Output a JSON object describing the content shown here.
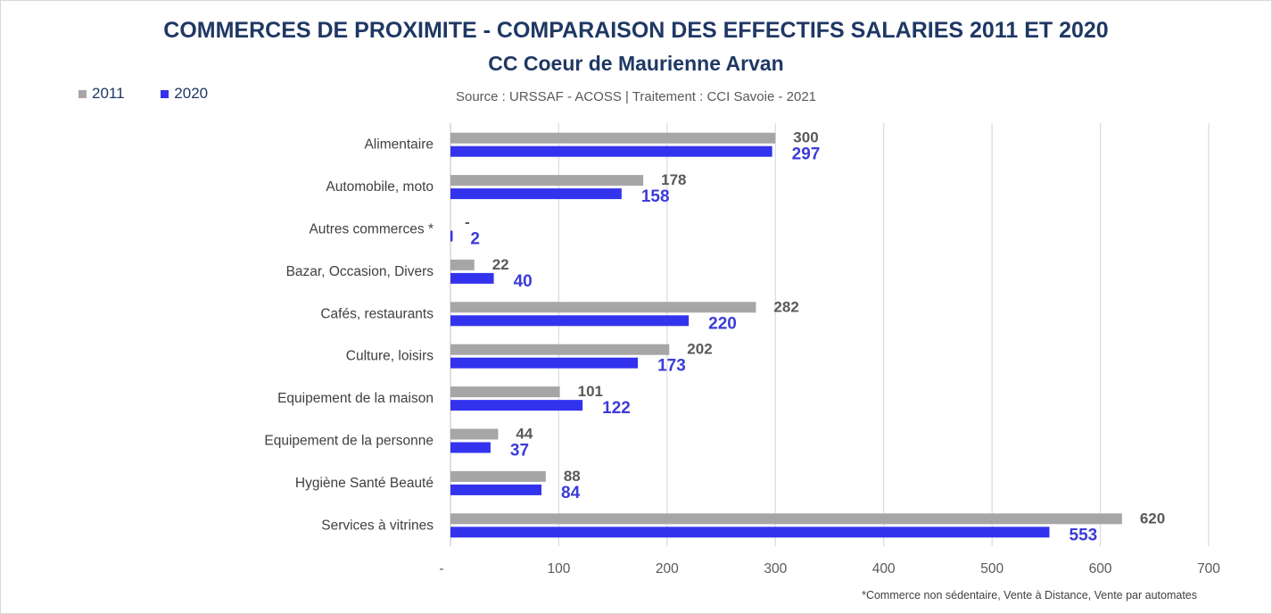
{
  "chart_data": {
    "type": "bar",
    "orientation": "horizontal",
    "title": "COMMERCES DE PROXIMITE - COMPARAISON DES EFFECTIFS SALARIES 2011 ET 2020",
    "subtitle": "CC Coeur de Maurienne Arvan",
    "source": "Source  : URSSAF - ACOSS  |  Traitement : CCI Savoie - 2021",
    "footnote": "*Commerce non sédentaire, Vente à Distance, Vente par automates",
    "categories": [
      "Alimentaire",
      "Automobile, moto",
      "Autres commerces *",
      "Bazar, Occasion, Divers",
      "Cafés, restaurants",
      "Culture, loisirs",
      "Equipement de la maison",
      "Equipement de la personne",
      "Hygiène Santé Beauté",
      "Services à vitrines"
    ],
    "series": [
      {
        "name": "2011",
        "color": "#a6a6a6",
        "values": [
          300,
          178,
          0,
          22,
          282,
          202,
          101,
          44,
          88,
          620
        ],
        "labels": [
          "300",
          "178",
          "-",
          "22",
          "282",
          "202",
          "101",
          "44",
          "88",
          "620"
        ]
      },
      {
        "name": "2020",
        "color": "#3333ee",
        "values": [
          297,
          158,
          2,
          40,
          220,
          173,
          122,
          37,
          84,
          553
        ],
        "labels": [
          "297",
          "158",
          "2",
          "40",
          "220",
          "173",
          "122",
          "37",
          "84",
          "553"
        ]
      }
    ],
    "xlim": [
      0,
      700
    ],
    "xticks": [
      0,
      100,
      200,
      300,
      400,
      500,
      600,
      700
    ],
    "xtick_labels": [
      "-",
      "100",
      "200",
      "300",
      "400",
      "500",
      "600",
      "700"
    ],
    "grid": "vertical",
    "legend_position": "top-left"
  }
}
